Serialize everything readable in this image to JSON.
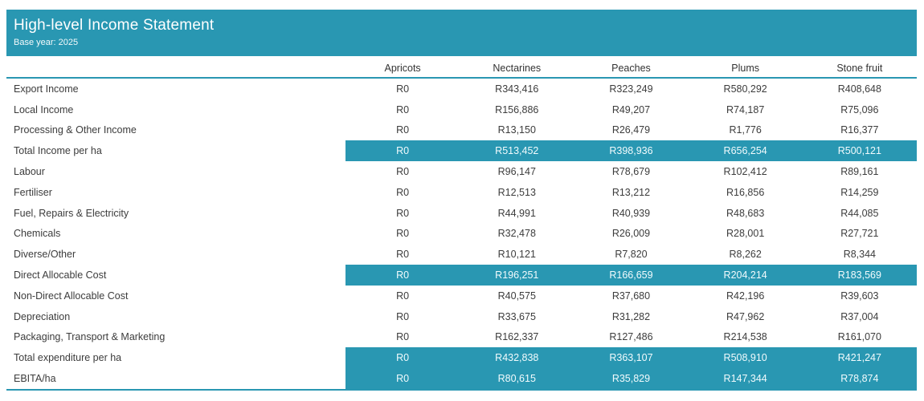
{
  "colors": {
    "accent": "#2997b2",
    "text": "#3c3c3c",
    "highlight_text": "#f2fbfd",
    "background": "#ffffff"
  },
  "chart_data": {
    "type": "table",
    "title": "High-level Income Statement",
    "subtitle": "Base year: 2025",
    "columns": [
      "Apricots",
      "Nectarines",
      "Peaches",
      "Plums",
      "Stone fruit"
    ],
    "rows": [
      {
        "label": "Export Income",
        "values": [
          "R0",
          "R343,416",
          "R323,249",
          "R580,292",
          "R408,648"
        ],
        "highlight": false
      },
      {
        "label": "Local Income",
        "values": [
          "R0",
          "R156,886",
          "R49,207",
          "R74,187",
          "R75,096"
        ],
        "highlight": false
      },
      {
        "label": "Processing & Other Income",
        "values": [
          "R0",
          "R13,150",
          "R26,479",
          "R1,776",
          "R16,377"
        ],
        "highlight": false
      },
      {
        "label": "Total Income per ha",
        "values": [
          "R0",
          "R513,452",
          "R398,936",
          "R656,254",
          "R500,121"
        ],
        "highlight": true
      },
      {
        "label": "Labour",
        "values": [
          "R0",
          "R96,147",
          "R78,679",
          "R102,412",
          "R89,161"
        ],
        "highlight": false
      },
      {
        "label": "Fertiliser",
        "values": [
          "R0",
          "R12,513",
          "R13,212",
          "R16,856",
          "R14,259"
        ],
        "highlight": false
      },
      {
        "label": "Fuel, Repairs & Electricity",
        "values": [
          "R0",
          "R44,991",
          "R40,939",
          "R48,683",
          "R44,085"
        ],
        "highlight": false
      },
      {
        "label": "Chemicals",
        "values": [
          "R0",
          "R32,478",
          "R26,009",
          "R28,001",
          "R27,721"
        ],
        "highlight": false
      },
      {
        "label": "Diverse/Other",
        "values": [
          "R0",
          "R10,121",
          "R7,820",
          "R8,262",
          "R8,344"
        ],
        "highlight": false
      },
      {
        "label": "Direct Allocable Cost",
        "values": [
          "R0",
          "R196,251",
          "R166,659",
          "R204,214",
          "R183,569"
        ],
        "highlight": true
      },
      {
        "label": "Non-Direct Allocable Cost",
        "values": [
          "R0",
          "R40,575",
          "R37,680",
          "R42,196",
          "R39,603"
        ],
        "highlight": false
      },
      {
        "label": "Depreciation",
        "values": [
          "R0",
          "R33,675",
          "R31,282",
          "R47,962",
          "R37,004"
        ],
        "highlight": false
      },
      {
        "label": "Packaging, Transport & Marketing",
        "values": [
          "R0",
          "R162,337",
          "R127,486",
          "R214,538",
          "R161,070"
        ],
        "highlight": false
      },
      {
        "label": "Total expenditure per ha",
        "values": [
          "R0",
          "R432,838",
          "R363,107",
          "R508,910",
          "R421,247"
        ],
        "highlight": true
      },
      {
        "label": "EBITA/ha",
        "values": [
          "R0",
          "R80,615",
          "R35,829",
          "R147,344",
          "R78,874"
        ],
        "highlight": true
      }
    ]
  }
}
